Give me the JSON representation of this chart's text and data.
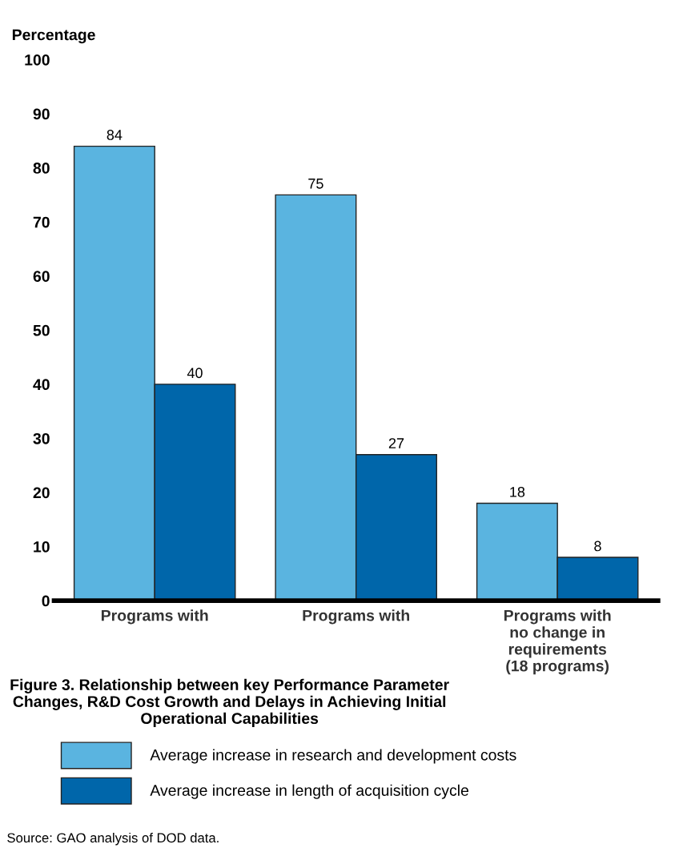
{
  "chart_data": {
    "type": "bar",
    "title": "Figure 3. Relationship between key Performance Parameter Changes, R&D Cost Growth and Delays in Achieving Initial Operational Capabilities",
    "ylabel": "Percentage",
    "categories": [
      "Programs with",
      "Programs with",
      "Programs with\nno change in\nrequirements\n(18 programs)"
    ],
    "series": [
      {
        "name": "Average increase in research and development costs",
        "color": "#5ab4e0",
        "values": [
          84,
          75,
          18
        ]
      },
      {
        "name": "Average increase in length of acquisition cycle",
        "color": "#0066aa",
        "values": [
          40,
          27,
          8
        ]
      }
    ],
    "ylim": [
      0,
      100
    ],
    "yticks": [
      0,
      10,
      20,
      30,
      40,
      50,
      60,
      70,
      80,
      90,
      100
    ],
    "data_labels": true,
    "grid": false,
    "legend": "bottom",
    "annotations": [
      "Source: GAO analysis of DOD data."
    ]
  }
}
